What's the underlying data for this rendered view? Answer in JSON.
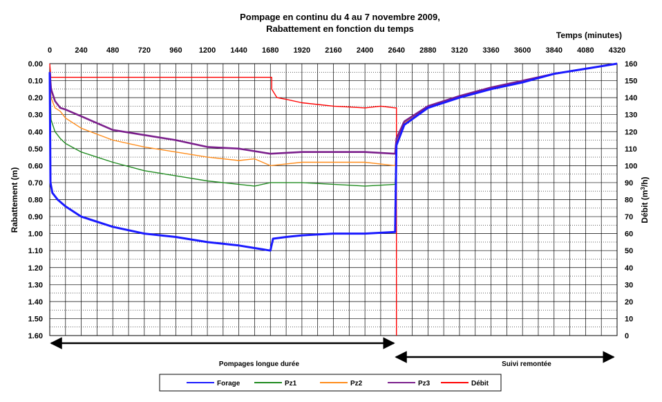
{
  "chart_data": {
    "type": "line",
    "title": "Pompage en continu du 4 au 7 novembre 2009,",
    "subtitle": "Rabattement en fonction du temps",
    "xlabel": "Temps (minutes)",
    "ylabel_left": "Rabattement (m)",
    "ylabel_right_main": "Débit (m",
    "ylabel_right_sup": "3",
    "ylabel_right_tail": "/h)",
    "x_range": [
      0,
      4320
    ],
    "x_ticks": [
      "0",
      "240",
      "480",
      "720",
      "960",
      "1200",
      "1440",
      "1680",
      "1920",
      "2160",
      "2400",
      "2640",
      "2880",
      "3120",
      "3360",
      "3600",
      "3840",
      "4080",
      "4320"
    ],
    "y_left_range": [
      0,
      1.6
    ],
    "y_left_inverted": true,
    "y_left_ticks": [
      "0.00",
      "0.10",
      "0.20",
      "0.30",
      "0.40",
      "0.50",
      "0.60",
      "0.70",
      "0.80",
      "0.90",
      "1.00",
      "1.10",
      "1.20",
      "1.30",
      "1.40",
      "1.50",
      "1.60"
    ],
    "y_right_range": [
      0,
      160
    ],
    "y_right_ticks": [
      "160",
      "150",
      "140",
      "130",
      "120",
      "110",
      "100",
      "90",
      "80",
      "70",
      "60",
      "50",
      "40",
      "30",
      "20",
      "10",
      "0"
    ],
    "grid": true,
    "legend_position": "bottom",
    "annotations": [
      {
        "text": "Pompages longue durée",
        "from_x": 0,
        "to_x": 2640
      },
      {
        "text": "Suivi remontée",
        "from_x": 2640,
        "to_x": 4320
      }
    ],
    "series": [
      {
        "name": "Forage",
        "color": "#1a1aff",
        "axis": "left",
        "points": [
          [
            0,
            0.05
          ],
          [
            5,
            0.7
          ],
          [
            20,
            0.76
          ],
          [
            60,
            0.8
          ],
          [
            120,
            0.84
          ],
          [
            240,
            0.9
          ],
          [
            480,
            0.96
          ],
          [
            720,
            1.0
          ],
          [
            960,
            1.02
          ],
          [
            1200,
            1.05
          ],
          [
            1440,
            1.07
          ],
          [
            1680,
            1.1
          ],
          [
            1700,
            1.03
          ],
          [
            1800,
            1.02
          ],
          [
            1920,
            1.01
          ],
          [
            2160,
            1.0
          ],
          [
            2400,
            1.0
          ],
          [
            2630,
            0.99
          ],
          [
            2640,
            0.48
          ],
          [
            2700,
            0.36
          ],
          [
            2880,
            0.26
          ],
          [
            3120,
            0.2
          ],
          [
            3360,
            0.15
          ],
          [
            3600,
            0.11
          ],
          [
            3840,
            0.06
          ],
          [
            4080,
            0.03
          ],
          [
            4320,
            0.0
          ]
        ]
      },
      {
        "name": "Pz1",
        "color": "#1e8a1e",
        "axis": "left",
        "points": [
          [
            0,
            0.05
          ],
          [
            10,
            0.33
          ],
          [
            40,
            0.4
          ],
          [
            80,
            0.44
          ],
          [
            120,
            0.47
          ],
          [
            240,
            0.52
          ],
          [
            480,
            0.58
          ],
          [
            720,
            0.63
          ],
          [
            960,
            0.66
          ],
          [
            1200,
            0.69
          ],
          [
            1440,
            0.71
          ],
          [
            1560,
            0.72
          ],
          [
            1680,
            0.7
          ],
          [
            1920,
            0.7
          ],
          [
            2160,
            0.71
          ],
          [
            2400,
            0.72
          ],
          [
            2630,
            0.71
          ],
          [
            2640,
            0.47
          ],
          [
            2700,
            0.35
          ],
          [
            2880,
            0.26
          ],
          [
            3120,
            0.2
          ],
          [
            3360,
            0.15
          ],
          [
            3600,
            0.1
          ],
          [
            3840,
            0.06
          ],
          [
            4080,
            0.03
          ],
          [
            4320,
            0.0
          ]
        ]
      },
      {
        "name": "Pz2",
        "color": "#ff8c1a",
        "axis": "left",
        "points": [
          [
            0,
            0.05
          ],
          [
            10,
            0.2
          ],
          [
            40,
            0.26
          ],
          [
            80,
            0.28
          ],
          [
            120,
            0.32
          ],
          [
            240,
            0.38
          ],
          [
            480,
            0.45
          ],
          [
            720,
            0.49
          ],
          [
            960,
            0.52
          ],
          [
            1200,
            0.55
          ],
          [
            1440,
            0.57
          ],
          [
            1560,
            0.56
          ],
          [
            1680,
            0.6
          ],
          [
            1920,
            0.58
          ],
          [
            2160,
            0.58
          ],
          [
            2400,
            0.58
          ],
          [
            2630,
            0.6
          ],
          [
            2640,
            0.46
          ],
          [
            2700,
            0.35
          ],
          [
            2880,
            0.26
          ],
          [
            3120,
            0.2
          ],
          [
            3360,
            0.15
          ],
          [
            3600,
            0.1
          ],
          [
            3840,
            0.06
          ],
          [
            4080,
            0.03
          ],
          [
            4320,
            0.0
          ]
        ]
      },
      {
        "name": "Pz3",
        "color": "#7b1f8c",
        "axis": "left",
        "points": [
          [
            0,
            0.05
          ],
          [
            10,
            0.15
          ],
          [
            40,
            0.22
          ],
          [
            80,
            0.26
          ],
          [
            120,
            0.27
          ],
          [
            240,
            0.31
          ],
          [
            480,
            0.39
          ],
          [
            720,
            0.42
          ],
          [
            960,
            0.45
          ],
          [
            1200,
            0.49
          ],
          [
            1440,
            0.5
          ],
          [
            1680,
            0.53
          ],
          [
            1920,
            0.52
          ],
          [
            2160,
            0.52
          ],
          [
            2400,
            0.52
          ],
          [
            2630,
            0.53
          ],
          [
            2640,
            0.44
          ],
          [
            2700,
            0.34
          ],
          [
            2880,
            0.25
          ],
          [
            3120,
            0.19
          ],
          [
            3360,
            0.14
          ],
          [
            3600,
            0.1
          ],
          [
            3840,
            0.06
          ],
          [
            4080,
            0.03
          ],
          [
            4320,
            0.0
          ]
        ]
      },
      {
        "name": "Débit",
        "color": "#ff0000",
        "axis": "right",
        "points": [
          [
            0,
            160
          ],
          [
            8,
            152
          ],
          [
            240,
            152
          ],
          [
            480,
            152
          ],
          [
            720,
            152
          ],
          [
            960,
            152
          ],
          [
            1200,
            152
          ],
          [
            1440,
            152
          ],
          [
            1690,
            152
          ],
          [
            1690,
            145
          ],
          [
            1730,
            140
          ],
          [
            1800,
            139
          ],
          [
            1920,
            137
          ],
          [
            2160,
            135
          ],
          [
            2400,
            134
          ],
          [
            2520,
            135
          ],
          [
            2630,
            134
          ],
          [
            2640,
            134
          ],
          [
            2640,
            0
          ]
        ]
      }
    ]
  }
}
